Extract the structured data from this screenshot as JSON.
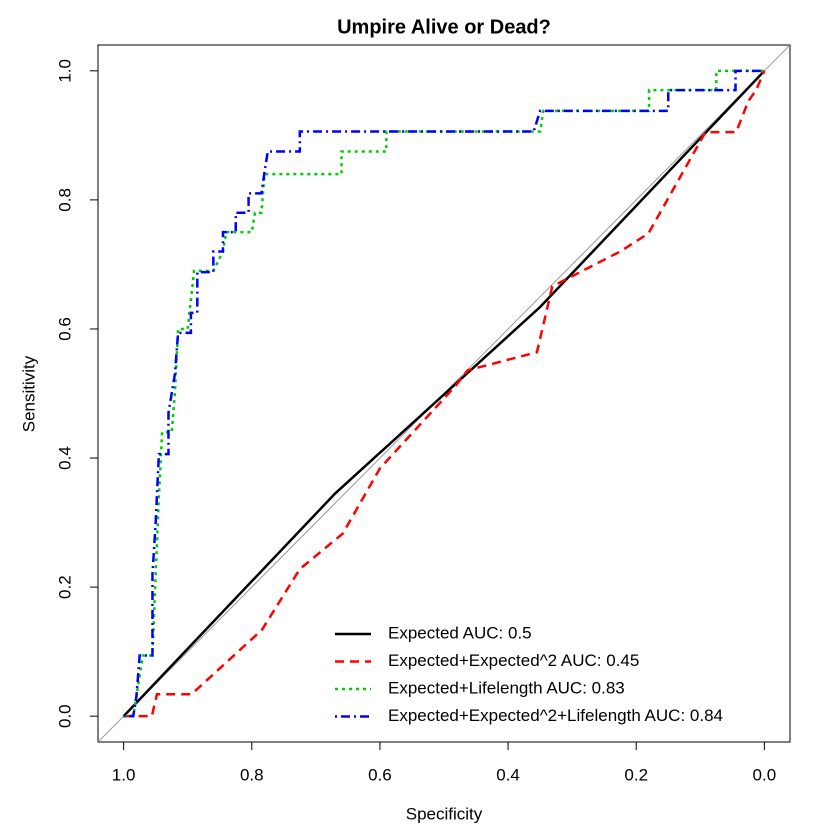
{
  "chart_data": {
    "type": "line",
    "title": "Umpire Alive or Dead?",
    "x_label": "Specificity",
    "y_label": "Sensitivity",
    "xlim": [
      1.04,
      -0.04
    ],
    "ylim": [
      -0.04,
      1.04
    ],
    "xticks": [
      {
        "value": 1,
        "label": "1.0"
      },
      {
        "value": 0.8,
        "label": "0.8"
      },
      {
        "value": 0.6,
        "label": "0.6"
      },
      {
        "value": 0.4,
        "label": "0.4"
      },
      {
        "value": 0.2,
        "label": "0.2"
      },
      {
        "value": 0,
        "label": "0.0"
      }
    ],
    "yticks": [
      {
        "value": 0,
        "label": "0.0"
      },
      {
        "value": 0.2,
        "label": "0.2"
      },
      {
        "value": 0.4,
        "label": "0.4"
      },
      {
        "value": 0.6,
        "label": "0.6"
      },
      {
        "value": 0.8,
        "label": "0.8"
      },
      {
        "value": 1,
        "label": "1.0"
      }
    ],
    "legend": "bottom-right",
    "series": [
      {
        "name": "Expected AUC: 0.5",
        "color": "#000000",
        "dash": "solid",
        "x": [
          1,
          0.67,
          0.35,
          0
        ],
        "values": [
          0,
          0.345,
          0.634,
          1
        ]
      },
      {
        "name": "Expected+Expected^2 AUC: 0.45",
        "color": "#ff0000",
        "dash": "dashed",
        "x": [
          1,
          0.956,
          0.948,
          0.894,
          0.784,
          0.725,
          0.658,
          0.6,
          0.481,
          0.463,
          0.355,
          0.331,
          0.225,
          0.181,
          0.092,
          0.044,
          0.025,
          0.013,
          0
        ],
        "values": [
          0,
          0,
          0.034,
          0.034,
          0.134,
          0.228,
          0.283,
          0.384,
          0.513,
          0.536,
          0.564,
          0.666,
          0.72,
          0.748,
          0.905,
          0.905,
          0.953,
          0.97,
          1
        ]
      },
      {
        "name": "Expected+Lifelength AUC: 0.83",
        "color": "#00cd00",
        "dash": "dotted",
        "x": [
          1,
          0.985,
          0.975,
          0.97,
          0.955,
          0.95,
          0.945,
          0.94,
          0.925,
          0.92,
          0.915,
          0.9,
          0.89,
          0.86,
          0.845,
          0.84,
          0.8,
          0.795,
          0.785,
          0.78,
          0.66,
          0.66,
          0.59,
          0.59,
          0.35,
          0.345,
          0.18,
          0.18,
          0.075,
          0.075,
          0
        ],
        "values": [
          0,
          0,
          0.063,
          0.094,
          0.094,
          0.22,
          0.34,
          0.44,
          0.44,
          0.5,
          0.6,
          0.6,
          0.69,
          0.69,
          0.72,
          0.75,
          0.75,
          0.78,
          0.78,
          0.84,
          0.84,
          0.875,
          0.875,
          0.906,
          0.906,
          0.938,
          0.938,
          0.97,
          0.97,
          1,
          1
        ]
      },
      {
        "name": "Expected+Expected^2+Lifelength AUC: 0.84",
        "color": "#0000ff",
        "dash": "dotdash",
        "x": [
          1,
          0.985,
          0.98,
          0.975,
          0.955,
          0.955,
          0.95,
          0.945,
          0.93,
          0.93,
          0.92,
          0.915,
          0.895,
          0.895,
          0.885,
          0.885,
          0.86,
          0.86,
          0.845,
          0.845,
          0.825,
          0.825,
          0.805,
          0.805,
          0.785,
          0.78,
          0.775,
          0.725,
          0.725,
          0.36,
          0.35,
          0.15,
          0.15,
          0.045,
          0.045,
          0
        ],
        "values": [
          0,
          0,
          0.031,
          0.094,
          0.094,
          0.22,
          0.3,
          0.406,
          0.406,
          0.47,
          0.53,
          0.594,
          0.594,
          0.625,
          0.625,
          0.688,
          0.688,
          0.72,
          0.72,
          0.75,
          0.75,
          0.78,
          0.78,
          0.81,
          0.81,
          0.844,
          0.875,
          0.875,
          0.906,
          0.906,
          0.938,
          0.938,
          0.97,
          0.97,
          1,
          1
        ]
      }
    ]
  }
}
